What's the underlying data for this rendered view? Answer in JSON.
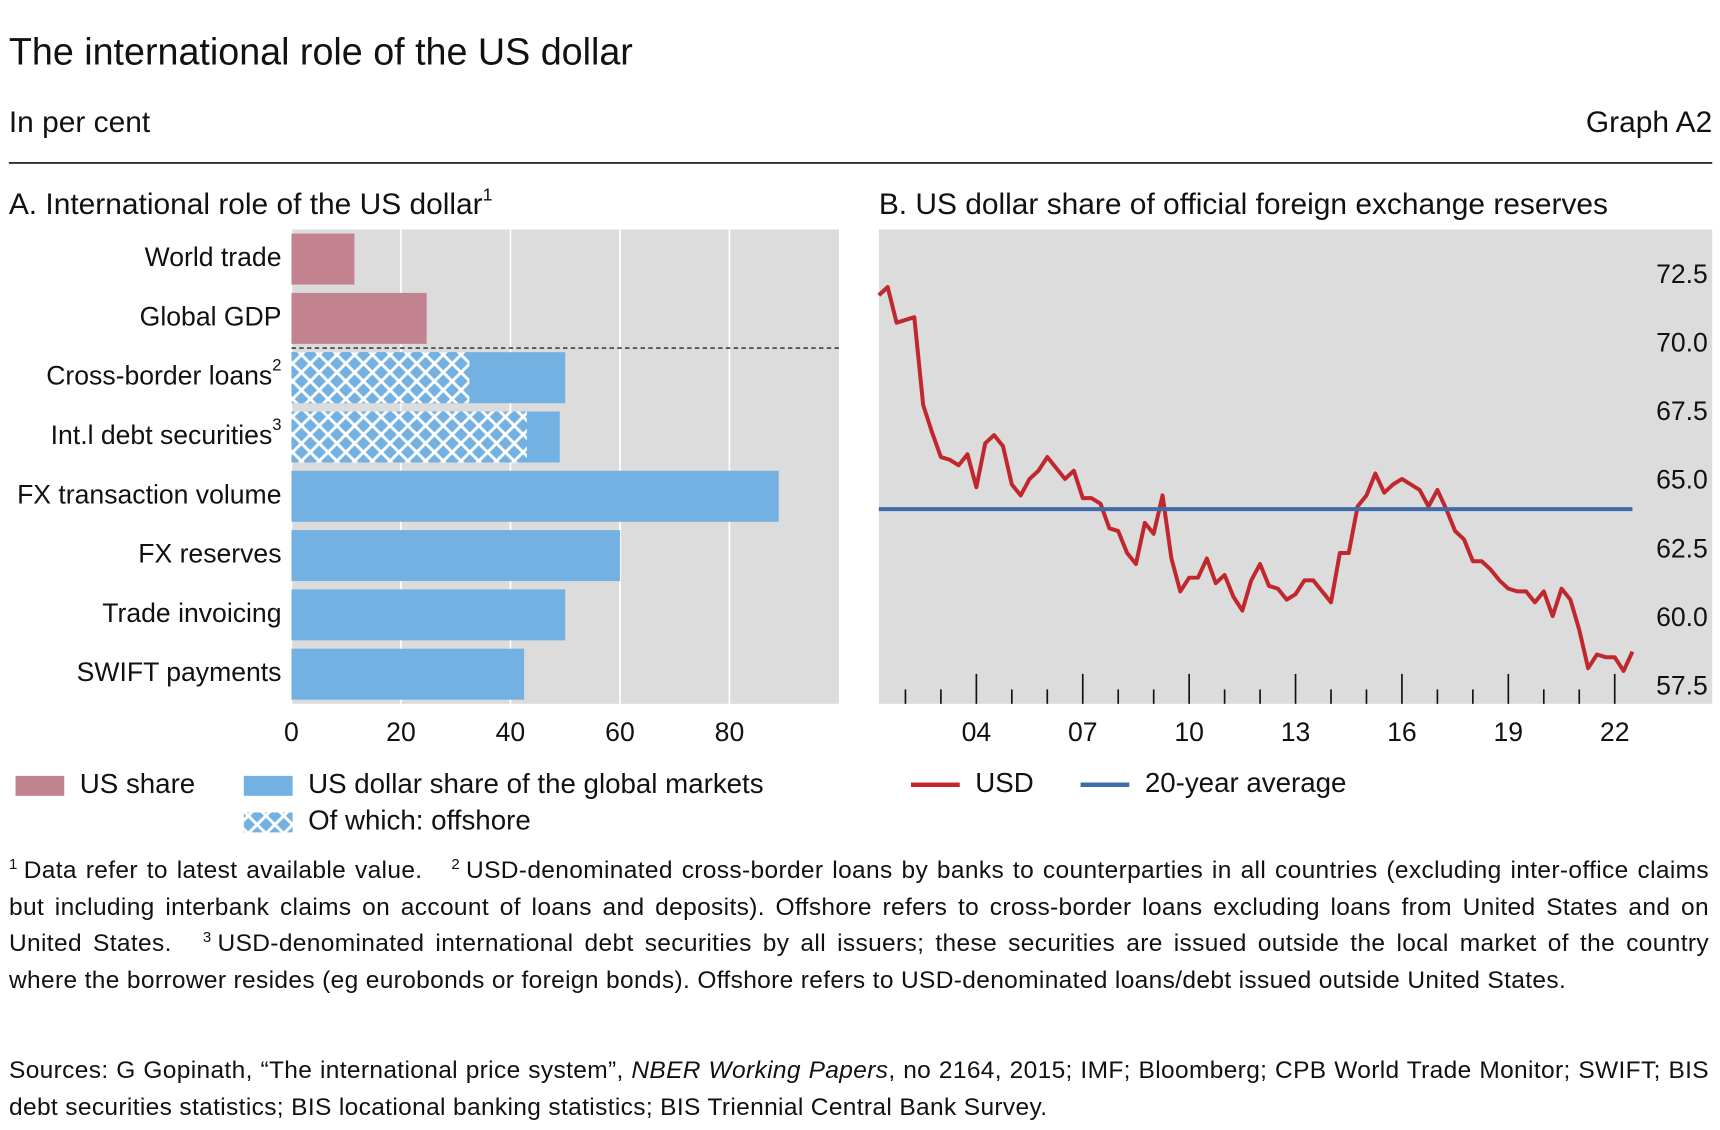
{
  "header": {
    "title": "The international role of the US dollar",
    "subtitle": "In per cent",
    "graph_label": "Graph A2"
  },
  "chart_data": [
    {
      "type": "bar",
      "orientation": "horizontal",
      "title": "A. International role of the US dollar",
      "title_note": "1",
      "categories": [
        "World trade",
        "Global GDP",
        "Cross-border loans",
        "Int.l debt securities",
        "FX transaction volume",
        "FX reserves",
        "Trade invoicing",
        "SWIFT payments"
      ],
      "category_notes": [
        null,
        null,
        "2",
        "3",
        null,
        null,
        null,
        null
      ],
      "series": [
        {
          "name": "US share",
          "color": "#c3828f",
          "values": [
            11.5,
            24.7,
            null,
            null,
            null,
            null,
            null,
            null
          ]
        },
        {
          "name": "US dollar share of the global markets",
          "color": "#72b1e2",
          "values": [
            null,
            null,
            50,
            49,
            89,
            60,
            50,
            42.5
          ]
        },
        {
          "name": "Of which: offshore",
          "color": "#72b1e2",
          "pattern": "crosshatch",
          "values": [
            null,
            null,
            32.5,
            43,
            null,
            null,
            null,
            null
          ]
        }
      ],
      "xlim": [
        0,
        100
      ],
      "xticks": [
        0,
        20,
        40,
        60,
        80
      ],
      "grid": true,
      "divider_after_category": 1
    },
    {
      "type": "line",
      "title": "B. US dollar share of official foreign exchange reserves",
      "x": [
        2001.25,
        2001.5,
        2001.75,
        2002,
        2002.25,
        2002.5,
        2002.75,
        2003,
        2003.25,
        2003.5,
        2003.75,
        2004,
        2004.25,
        2004.5,
        2004.75,
        2005,
        2005.25,
        2005.5,
        2005.75,
        2006,
        2006.25,
        2006.5,
        2006.75,
        2007,
        2007.25,
        2007.5,
        2007.75,
        2008,
        2008.25,
        2008.5,
        2008.75,
        2009,
        2009.25,
        2009.5,
        2009.75,
        2010,
        2010.25,
        2010.5,
        2010.75,
        2011,
        2011.25,
        2011.5,
        2011.75,
        2012,
        2012.25,
        2012.5,
        2012.75,
        2013,
        2013.25,
        2013.5,
        2013.75,
        2014,
        2014.25,
        2014.5,
        2014.75,
        2015,
        2015.25,
        2015.5,
        2015.75,
        2016,
        2016.25,
        2016.5,
        2016.75,
        2017,
        2017.25,
        2017.5,
        2017.75,
        2018,
        2018.25,
        2018.5,
        2018.75,
        2019,
        2019.25,
        2019.5,
        2019.75,
        2020,
        2020.25,
        2020.5,
        2020.75,
        2021,
        2021.25,
        2021.5,
        2021.75,
        2022,
        2022.25,
        2022.5
      ],
      "series": [
        {
          "name": "USD",
          "color": "#c0282d",
          "values": [
            71.8,
            72.1,
            70.8,
            70.9,
            71.0,
            67.8,
            66.8,
            65.9,
            65.8,
            65.6,
            66.0,
            64.8,
            66.4,
            66.7,
            66.3,
            64.9,
            64.5,
            65.1,
            65.4,
            65.9,
            65.5,
            65.1,
            65.4,
            64.4,
            64.4,
            64.2,
            63.3,
            63.2,
            62.4,
            62.0,
            63.5,
            63.1,
            64.5,
            62.2,
            61.0,
            61.5,
            61.5,
            62.2,
            61.3,
            61.6,
            60.8,
            60.3,
            61.4,
            62.0,
            61.2,
            61.1,
            60.7,
            60.9,
            61.4,
            61.4,
            61.0,
            60.6,
            62.4,
            62.4,
            64.1,
            64.5,
            65.3,
            64.6,
            64.9,
            65.1,
            64.9,
            64.7,
            64.1,
            64.7,
            64.0,
            63.2,
            62.9,
            62.1,
            62.1,
            61.8,
            61.4,
            61.1,
            61.0,
            61.0,
            60.6,
            61.0,
            60.1,
            61.1,
            60.7,
            59.6,
            58.2,
            58.7,
            58.6,
            58.6,
            58.1,
            58.8
          ]
        },
        {
          "name": "20-year average",
          "color": "#3f6cab",
          "x": [
            2001.25,
            2022.5
          ],
          "values": [
            64.0,
            64.0
          ]
        }
      ],
      "xlim": [
        2001.25,
        2024.75
      ],
      "ylim": [
        56.9,
        74.2
      ],
      "xticks": [
        {
          "value": 2004,
          "label": "04"
        },
        {
          "value": 2007,
          "label": "07"
        },
        {
          "value": 2010,
          "label": "10"
        },
        {
          "value": 2013,
          "label": "13"
        },
        {
          "value": 2016,
          "label": "16"
        },
        {
          "value": 2019,
          "label": "19"
        },
        {
          "value": 2022,
          "label": "22"
        }
      ],
      "xminor_ticks": [
        2002,
        2003,
        2005,
        2006,
        2008,
        2009,
        2011,
        2012,
        2014,
        2015,
        2017,
        2018,
        2020,
        2021
      ],
      "yticks": [
        57.5,
        {
          "value": 60,
          "label": "60.0"
        },
        62.5,
        {
          "value": 65,
          "label": "65.0"
        },
        67.5,
        {
          "value": 70,
          "label": "70.0"
        },
        72.5
      ],
      "y_axis_side": "right",
      "grid": false
    }
  ],
  "footnotes": [
    {
      "marker": "1",
      "text": "Data refer to latest available value."
    },
    {
      "marker": "2",
      "text": "USD-denominated cross-border loans by banks to counterparties in all countries (excluding inter-office claims but including interbank claims on account of loans and deposits). Offshore refers to cross-border loans excluding loans from United States and on United States."
    },
    {
      "marker": "3",
      "text": "USD-denominated international debt securities by all issuers; these securities are issued outside the local market of the country where the borrower resides (eg eurobonds or foreign bonds). Offshore refers to USD-denominated loans/debt issued outside United States."
    }
  ],
  "sources": {
    "before": "Sources: G Gopinath, “The international price system”, ",
    "italic": "NBER Working Papers",
    "after": ", no 2164, 2015; IMF; Bloomberg; CPB World Trade Monitor; SWIFT; BIS debt securities statistics; BIS locational banking statistics; BIS Triennial Central Bank Survey."
  }
}
